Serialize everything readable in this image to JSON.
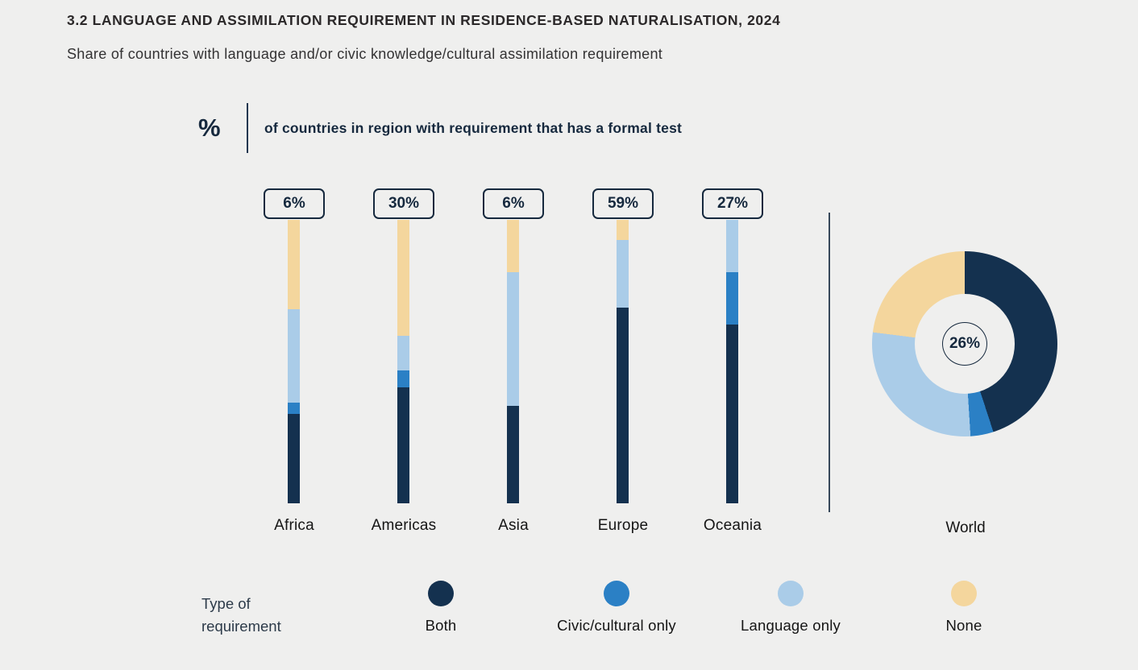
{
  "header": {
    "title": "3.2 LANGUAGE AND ASSIMILATION REQUIREMENT IN RESIDENCE-BASED NATURALISATION, 2024",
    "subtitle": "Share of countries with language and/or civic knowledge/cultural assimilation requirement"
  },
  "callout": {
    "symbol": "%",
    "text": "of countries in region with requirement that has a formal test"
  },
  "colors": {
    "background": "#efefee",
    "both": "#14314f",
    "civic_only": "#2b80c5",
    "language_only": "#aacce8",
    "none": "#f4d69d"
  },
  "chart_data": {
    "type": "bar",
    "subtype": "stacked-percentage-bars-with-donut",
    "ylim": [
      0,
      100
    ],
    "grid": false,
    "stack_order_top_to_bottom": [
      "none",
      "language_only",
      "civic_only",
      "both"
    ],
    "legend_position": "bottom",
    "legend_title": "Type of requirement",
    "legend": [
      {
        "key": "both",
        "label": "Both",
        "color": "#14314f"
      },
      {
        "key": "civic_only",
        "label": "Civic/cultural only",
        "color": "#2b80c5"
      },
      {
        "key": "language_only",
        "label": "Language only",
        "color": "#aacce8"
      },
      {
        "key": "none",
        "label": "None",
        "color": "#f4d69d"
      }
    ],
    "categories": [
      "Africa",
      "Americas",
      "Asia",
      "Europe",
      "Oceania"
    ],
    "bars": [
      {
        "region": "Africa",
        "formal_test_label": "6%",
        "segments": {
          "both": 31.5,
          "civic_only": 4,
          "language_only": 33,
          "none": 31.5
        }
      },
      {
        "region": "Americas",
        "formal_test_label": "30%",
        "segments": {
          "both": 41,
          "civic_only": 6,
          "language_only": 12,
          "none": 41
        }
      },
      {
        "region": "Asia",
        "formal_test_label": "6%",
        "segments": {
          "both": 34.5,
          "civic_only": 0,
          "language_only": 47,
          "none": 18.5
        }
      },
      {
        "region": "Europe",
        "formal_test_label": "59%",
        "segments": {
          "both": 69,
          "civic_only": 0,
          "language_only": 24,
          "none": 7
        }
      },
      {
        "region": "Oceania",
        "formal_test_label": "27%",
        "segments": {
          "both": 63,
          "civic_only": 18.5,
          "language_only": 18.5,
          "none": 0
        }
      }
    ],
    "world": {
      "label": "World",
      "type": "donut",
      "center_label": "26%",
      "order_clockwise_from_top": [
        "both",
        "civic_only",
        "language_only",
        "none"
      ],
      "segments": {
        "both": 45,
        "civic_only": 4,
        "language_only": 28,
        "none": 23
      }
    }
  }
}
